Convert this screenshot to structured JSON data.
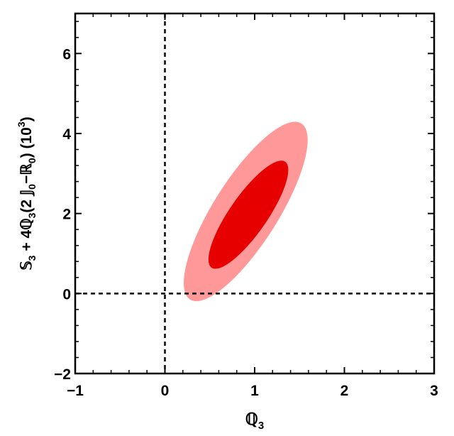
{
  "chart_data": {
    "type": "contour",
    "xlabel": "ℚ",
    "xlabel_sub": "3",
    "ylabel_parts": [
      {
        "t": "𝕊"
      },
      {
        "t": "3",
        "s": "sub"
      },
      {
        "t": " + 4ℚ"
      },
      {
        "t": "3",
        "s": "sub"
      },
      {
        "t": "(2 𝕁"
      },
      {
        "t": "0",
        "s": "sub"
      },
      {
        "t": "−ℝ"
      },
      {
        "t": "0",
        "s": "sub"
      },
      {
        "t": ") (10"
      },
      {
        "t": "3",
        "s": "sup"
      },
      {
        "t": ")"
      }
    ],
    "xlim": [
      -1,
      3
    ],
    "ylim": [
      -2,
      7
    ],
    "x_ticks": [
      -1,
      0,
      1,
      2,
      3
    ],
    "x_tick_labels": [
      "−1",
      "0",
      "1",
      "2",
      "3"
    ],
    "y_ticks": [
      -2,
      0,
      2,
      4,
      6
    ],
    "y_tick_labels": [
      "−2",
      "0",
      "2",
      "4",
      "6"
    ],
    "reference_lines": {
      "x": 0,
      "y": 0
    },
    "colors": {
      "outer_region": "#ff9999",
      "inner_region": "#e60000",
      "axes": "#000000"
    },
    "regions": [
      {
        "name": "outer",
        "center": [
          0.9,
          2.05
        ],
        "orientation_points": [
          [
            1.52,
            4.25
          ],
          [
            0.28,
            -0.15
          ]
        ],
        "half_width": 0.36
      },
      {
        "name": "inner",
        "center": [
          0.93,
          1.97
        ],
        "orientation_points": [
          [
            1.3,
            3.3
          ],
          [
            0.48,
            0.65
          ]
        ],
        "half_width": 0.21
      }
    ]
  }
}
